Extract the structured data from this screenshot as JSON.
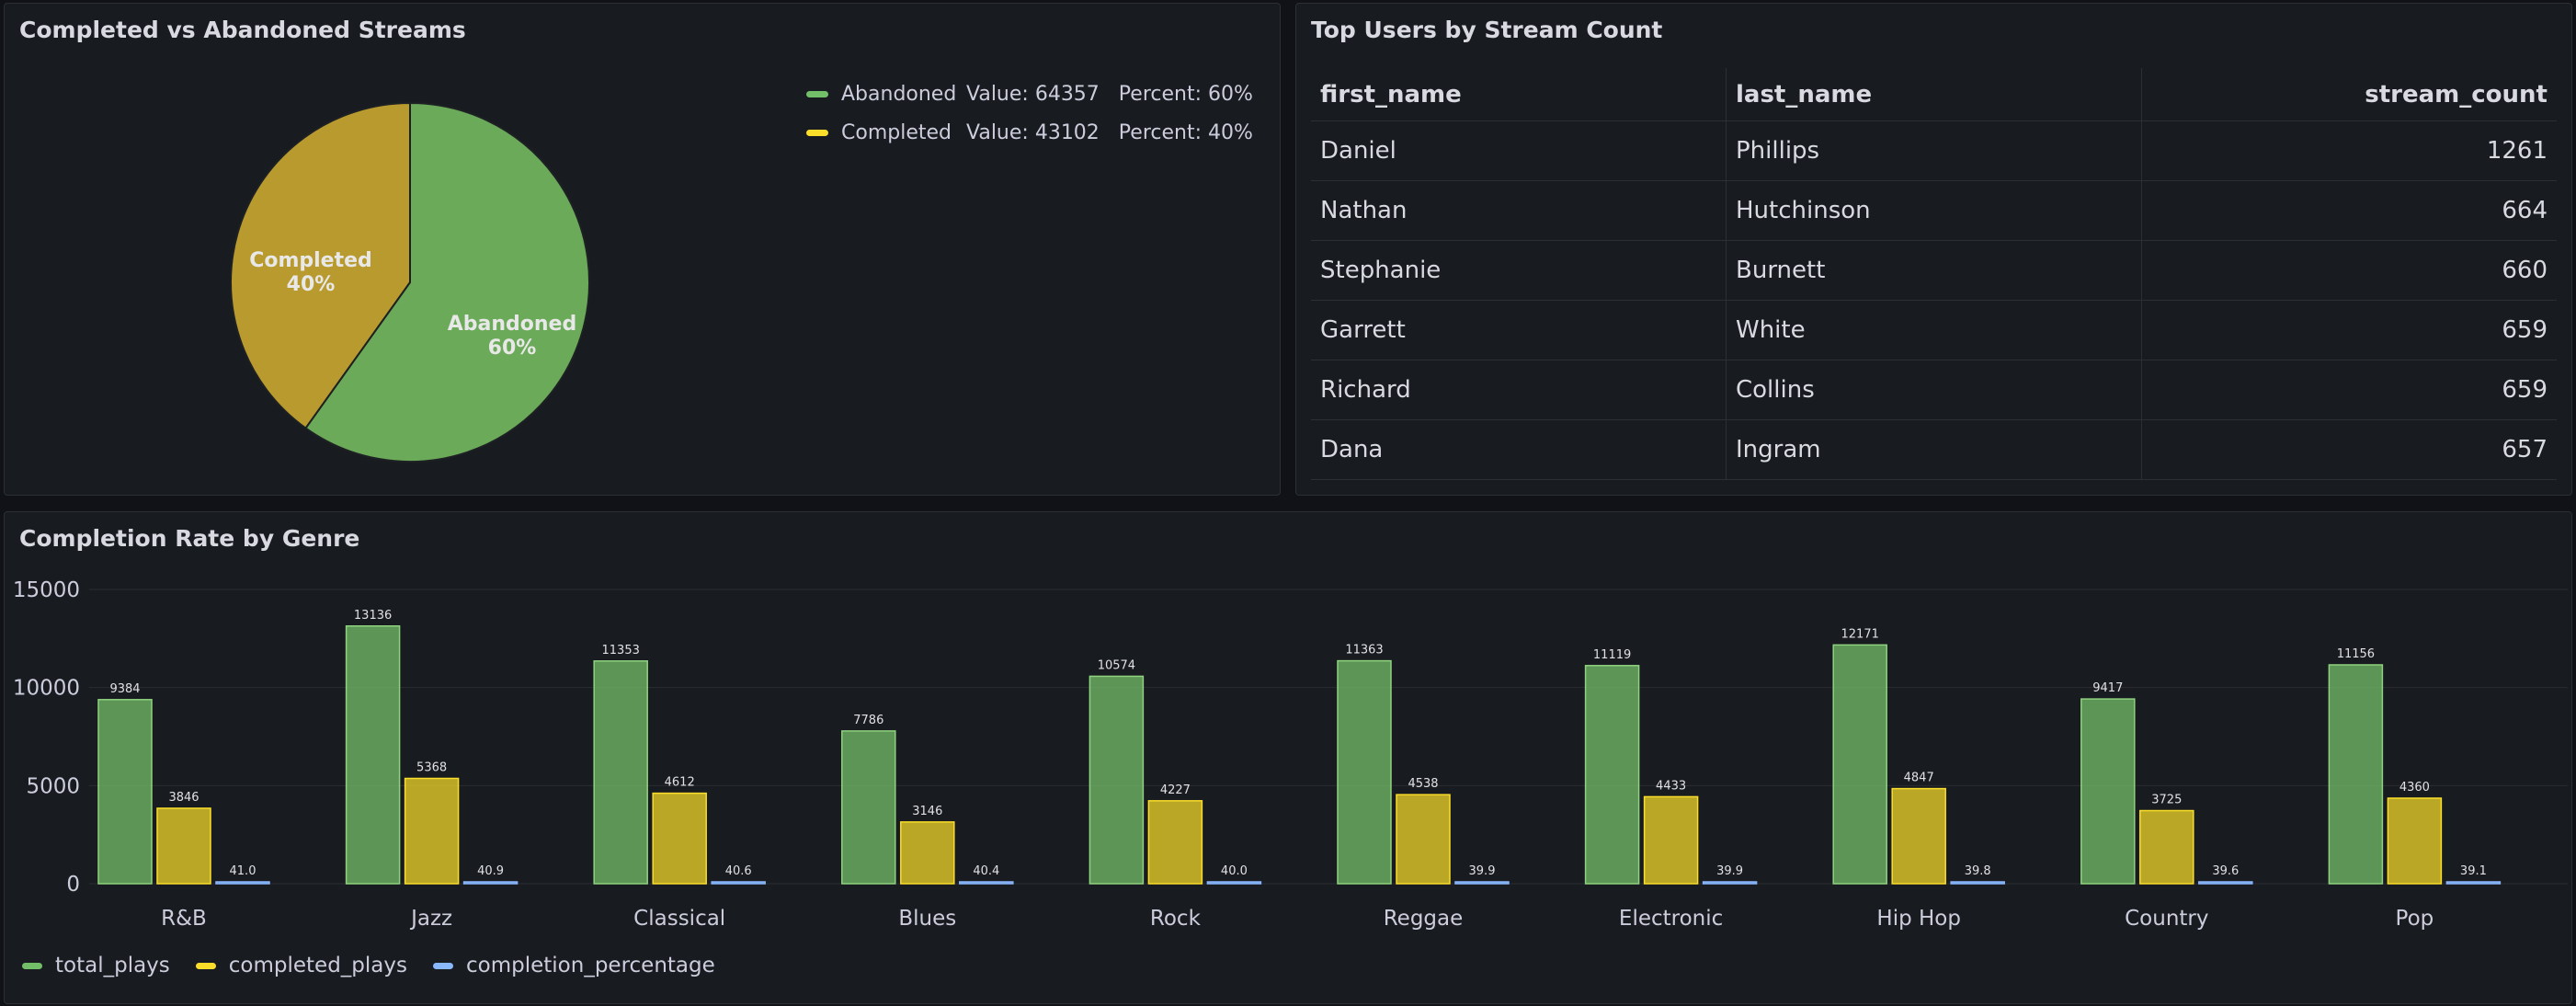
{
  "pie_panel": {
    "title": "Completed vs Abandoned Streams",
    "legend": [
      {
        "name": "Abandoned",
        "value_text": "Value: 64357",
        "percent_text": "Percent: 60%",
        "color": "#73bf69"
      },
      {
        "name": "Completed",
        "value_text": "Value: 43102",
        "percent_text": "Percent: 40%",
        "color": "#fade2a"
      }
    ],
    "labels": [
      {
        "name": "Completed",
        "pct": "40%"
      },
      {
        "name": "Abandoned",
        "pct": "60%"
      }
    ]
  },
  "table_panel": {
    "title": "Top Users by Stream Count",
    "columns": [
      "first_name",
      "last_name",
      "stream_count"
    ],
    "rows": [
      [
        "Daniel",
        "Phillips",
        "1261"
      ],
      [
        "Nathan",
        "Hutchinson",
        "664"
      ],
      [
        "Stephanie",
        "Burnett",
        "660"
      ],
      [
        "Garrett",
        "White",
        "659"
      ],
      [
        "Richard",
        "Collins",
        "659"
      ],
      [
        "Dana",
        "Ingram",
        "657"
      ]
    ]
  },
  "bar_panel": {
    "title": "Completion Rate by Genre"
  },
  "chart_data": [
    {
      "type": "pie",
      "title": "Completed vs Abandoned Streams",
      "categories": [
        "Abandoned",
        "Completed"
      ],
      "values": [
        64357,
        43102
      ],
      "percents": [
        60,
        40
      ],
      "colors": [
        "#73bf69",
        "#fade2a"
      ],
      "legend": "top-right"
    },
    {
      "type": "bar",
      "title": "Completion Rate by Genre",
      "categories": [
        "R&B",
        "Jazz",
        "Classical",
        "Blues",
        "Rock",
        "Reggae",
        "Electronic",
        "Hip Hop",
        "Country",
        "Pop"
      ],
      "series": [
        {
          "name": "total_plays",
          "color": "#73bf69",
          "values": [
            9384,
            13136,
            11353,
            7786,
            10574,
            11363,
            11119,
            12171,
            9417,
            11156
          ]
        },
        {
          "name": "completed_plays",
          "color": "#fade2a",
          "values": [
            3846,
            5368,
            4612,
            3146,
            4227,
            4538,
            4433,
            4847,
            3725,
            4360
          ]
        },
        {
          "name": "completion_percentage",
          "color": "#8ab8ff",
          "values": [
            41.0,
            40.9,
            40.6,
            40.4,
            40.0,
            39.9,
            39.9,
            39.8,
            39.6,
            39.1
          ]
        }
      ],
      "yticks": [
        "0",
        "5000",
        "10000",
        "15000"
      ],
      "ylim": [
        0,
        15000
      ],
      "grid": true,
      "legend": "bottom-left"
    }
  ]
}
